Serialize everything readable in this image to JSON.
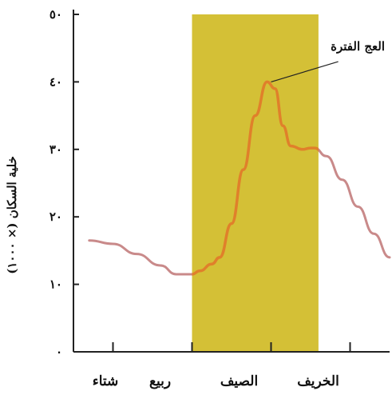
{
  "chart_data": {
    "type": "line",
    "ylabel": "(خلية السكان (× ١٠٠٠",
    "ylim": [
      0,
      50
    ],
    "yticks": [
      {
        "value": 0,
        "label": "٠"
      },
      {
        "value": 10,
        "label": "١٠"
      },
      {
        "value": 20,
        "label": "٢٠"
      },
      {
        "value": 30,
        "label": "٣٠"
      },
      {
        "value": 40,
        "label": "٤٠"
      },
      {
        "value": 50,
        "label": "٥٠"
      }
    ],
    "xlim": [
      0,
      4
    ],
    "categories": [
      "شتاء",
      "ربيع",
      "الصيف",
      "الخريف"
    ],
    "category_centers": [
      0.5,
      1.5,
      2.5,
      3.5
    ],
    "category_boundaries": [
      0.5,
      1.5,
      2.5,
      3.5
    ],
    "highlight": {
      "x_start": 1.5,
      "x_end": 3.1,
      "color": "#d4c036"
    },
    "series": [
      {
        "x": [
          0.2,
          0.5,
          0.8,
          1.1,
          1.3,
          1.5,
          1.6,
          1.75,
          1.85,
          2.0,
          2.15,
          2.3,
          2.45,
          2.55,
          2.65,
          2.75,
          2.9,
          3.0,
          3.05,
          3.2,
          3.4,
          3.6,
          3.8,
          4.0
        ],
        "y": [
          16.5,
          16.0,
          14.5,
          12.8,
          11.5,
          11.5,
          12.0,
          13.0,
          14.0,
          19.0,
          27.0,
          35.0,
          40.0,
          39.0,
          33.5,
          30.5,
          30.0,
          30.2,
          30.2,
          29.0,
          25.5,
          21.5,
          17.5,
          14.0
        ],
        "color": "#c98a8a",
        "highlight_color": "#e0802a"
      }
    ],
    "annotation": {
      "text": "العج الفترة",
      "x": 2.5,
      "y": 40.0,
      "line_end_x": 3.35,
      "line_end_y": 43.0
    }
  }
}
